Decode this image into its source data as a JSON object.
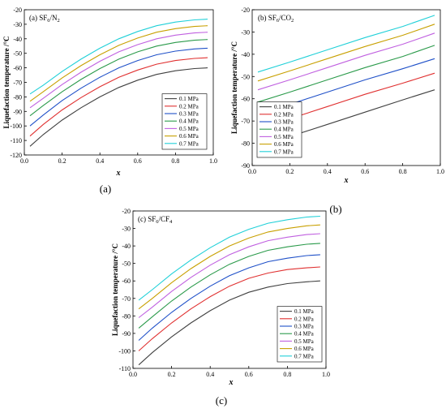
{
  "colors": {
    "axis": "#000000",
    "series": [
      "#404040",
      "#e03030",
      "#1f50c8",
      "#2a9a4a",
      "#c060e0",
      "#c8a000",
      "#20d0d8"
    ]
  },
  "chart_data": [
    {
      "type": "line",
      "panel_label": "(a)",
      "title": "(a) SF6/N2",
      "title_parts": {
        "lead": "(a) SF",
        "sub1": "6",
        "mid": "/N",
        "sub2": "2"
      },
      "xlabel": "x",
      "ylabel": "Liquefaction temperature /°C",
      "xlim": [
        0,
        1.0
      ],
      "ylim": [
        -120,
        -20
      ],
      "xticks": [
        "0.0",
        "0.2",
        "0.4",
        "0.6",
        "0.8",
        "1.0"
      ],
      "yticks": [
        "-120",
        "-110",
        "-100",
        "-90",
        "-80",
        "-70",
        "-60",
        "-50",
        "-40",
        "-30",
        "-20"
      ],
      "legend_position": "right-bottom",
      "x": [
        0.03,
        0.1,
        0.2,
        0.3,
        0.4,
        0.5,
        0.6,
        0.7,
        0.8,
        0.9,
        0.97
      ],
      "series": [
        {
          "name": "0.1 MPa",
          "values": [
            -114,
            -106,
            -96,
            -87.5,
            -80,
            -73.5,
            -68.5,
            -64.5,
            -62,
            -60.5,
            -60
          ]
        },
        {
          "name": "0.2 MPa",
          "values": [
            -107,
            -99,
            -89,
            -80.5,
            -73,
            -66.5,
            -61.5,
            -57.5,
            -55,
            -53.5,
            -53
          ]
        },
        {
          "name": "0.3 MPa",
          "values": [
            -100,
            -92.5,
            -82.5,
            -74,
            -66.5,
            -60,
            -55,
            -51,
            -48.5,
            -47,
            -46.5
          ]
        },
        {
          "name": "0.4 MPa",
          "values": [
            -93,
            -86,
            -76.5,
            -68,
            -60.5,
            -54,
            -49,
            -45,
            -42.5,
            -41,
            -40.5
          ]
        },
        {
          "name": "0.5 MPa",
          "values": [
            -87.5,
            -81,
            -71.5,
            -63,
            -55.5,
            -49,
            -44,
            -40,
            -37.5,
            -36,
            -35.5
          ]
        },
        {
          "name": "0.6 MPa",
          "values": [
            -83,
            -76.5,
            -67,
            -58.5,
            -51,
            -44.5,
            -39.5,
            -35.5,
            -33,
            -31.5,
            -31
          ]
        },
        {
          "name": "0.7 MPa",
          "values": [
            -78,
            -72,
            -62.5,
            -54,
            -46.5,
            -40,
            -35,
            -31,
            -28.5,
            -27,
            -26.5
          ]
        }
      ]
    },
    {
      "type": "line",
      "panel_label": "(b)",
      "title": "(b) SF6/CO2",
      "title_parts": {
        "lead": "(b) SF",
        "sub1": "6",
        "mid": "/CO",
        "sub2": "2"
      },
      "xlabel": "x",
      "ylabel": "Liquefaction temperature /°C",
      "xlim": [
        0,
        1.0
      ],
      "ylim": [
        -90,
        -20
      ],
      "xticks": [
        "0.0",
        "0.2",
        "0.4",
        "0.6",
        "0.8",
        "1.0"
      ],
      "yticks": [
        "-90",
        "-80",
        "-70",
        "-60",
        "-50",
        "-40",
        "-30",
        "-20"
      ],
      "legend_position": "left-bottom",
      "x": [
        0.03,
        0.2,
        0.4,
        0.6,
        0.8,
        0.97
      ],
      "series": [
        {
          "name": "0.1 MPa",
          "values": [
            -81.5,
            -77,
            -71.5,
            -66,
            -60.5,
            -56
          ]
        },
        {
          "name": "0.2 MPa",
          "values": [
            -74,
            -69,
            -63.5,
            -58,
            -53,
            -48.5
          ]
        },
        {
          "name": "0.3 MPa",
          "values": [
            -67,
            -62.5,
            -57,
            -51.5,
            -46.5,
            -42
          ]
        },
        {
          "name": "0.4 MPa",
          "values": [
            -61.5,
            -57,
            -51.5,
            -46,
            -41,
            -36
          ]
        },
        {
          "name": "0.5 MPa",
          "values": [
            -56,
            -51.5,
            -46,
            -40.5,
            -35.5,
            -30.5
          ]
        },
        {
          "name": "0.6 MPa",
          "values": [
            -52,
            -47.5,
            -42,
            -36.5,
            -31.5,
            -26.5
          ]
        },
        {
          "name": "0.7 MPa",
          "values": [
            -48,
            -43.5,
            -38,
            -32.5,
            -27.5,
            -22.5
          ]
        }
      ]
    },
    {
      "type": "line",
      "panel_label": "(c)",
      "title": "(c) SF6/CF4",
      "title_parts": {
        "lead": "(c) SF",
        "sub1": "6",
        "mid": "/CF",
        "sub2": "4"
      },
      "xlabel": "x",
      "ylabel": "Liquefaction temperature /°C",
      "xlim": [
        0,
        1.0
      ],
      "ylim": [
        -110,
        -20
      ],
      "xticks": [
        "0.0",
        "0.2",
        "0.4",
        "0.6",
        "0.8",
        "1.0"
      ],
      "yticks": [
        "-110",
        "-100",
        "-90",
        "-80",
        "-70",
        "-60",
        "-50",
        "-40",
        "-30",
        "-20"
      ],
      "legend_position": "right-bottom",
      "x": [
        0.03,
        0.1,
        0.2,
        0.3,
        0.4,
        0.5,
        0.6,
        0.7,
        0.8,
        0.9,
        0.97
      ],
      "series": [
        {
          "name": "0.1 MPa",
          "values": [
            -108,
            -101,
            -92,
            -84,
            -77,
            -71,
            -66.5,
            -63.5,
            -61.5,
            -60.5,
            -60
          ]
        },
        {
          "name": "0.2 MPa",
          "values": [
            -100,
            -93,
            -84,
            -76,
            -69,
            -63,
            -58.5,
            -55.5,
            -53.5,
            -52.5,
            -52
          ]
        },
        {
          "name": "0.3 MPa",
          "values": [
            -94,
            -87,
            -78,
            -70,
            -63,
            -57,
            -52.5,
            -49,
            -47,
            -45.5,
            -45
          ]
        },
        {
          "name": "0.4 MPa",
          "values": [
            -87,
            -80.5,
            -71.5,
            -63.5,
            -56.5,
            -50.5,
            -46,
            -42.5,
            -40.5,
            -39,
            -38.5
          ]
        },
        {
          "name": "0.5 MPa",
          "values": [
            -81,
            -75,
            -66,
            -58,
            -51,
            -45,
            -40.5,
            -37,
            -35,
            -33.5,
            -33
          ]
        },
        {
          "name": "0.6 MPa",
          "values": [
            -76,
            -70,
            -61,
            -53,
            -46,
            -40,
            -35.5,
            -32,
            -30,
            -28.5,
            -28
          ]
        },
        {
          "name": "0.7 MPa",
          "values": [
            -71,
            -65,
            -56,
            -48,
            -41,
            -35,
            -30.5,
            -27,
            -25,
            -23.5,
            -23
          ]
        }
      ]
    }
  ]
}
